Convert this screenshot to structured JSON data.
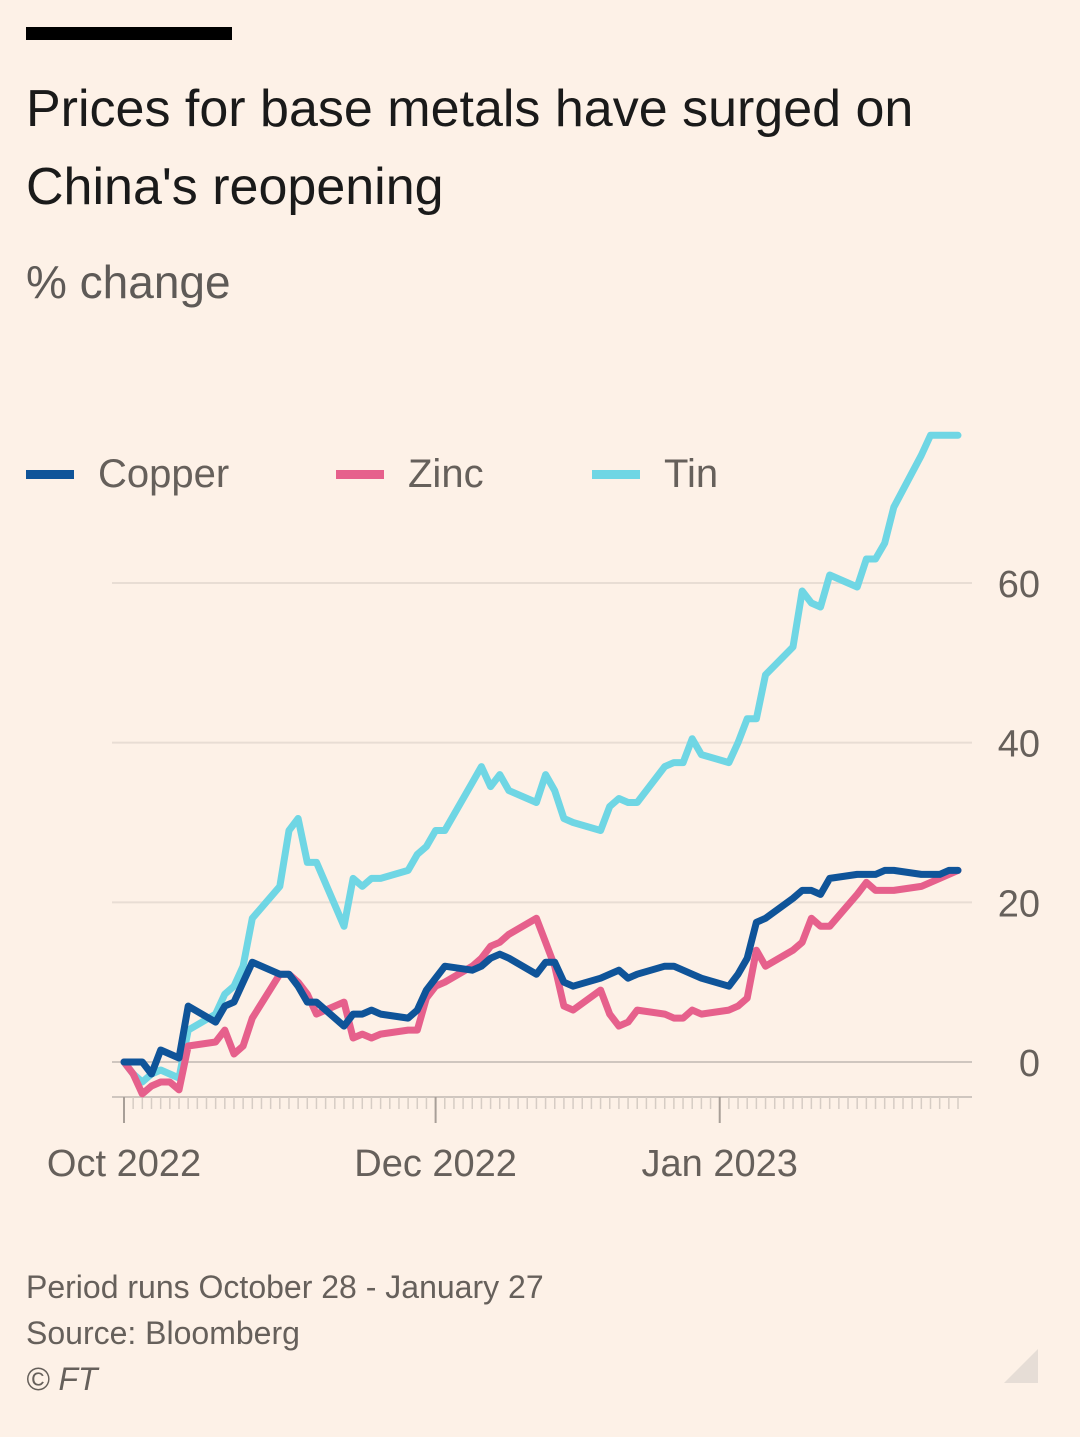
{
  "header": {
    "title": "Prices for base metals have surged on China's reopening",
    "subtitle": "% change"
  },
  "legend": [
    {
      "label": "Copper",
      "color": "#0f5499"
    },
    {
      "label": "Zinc",
      "color": "#e6608c"
    },
    {
      "label": "Tin",
      "color": "#6fd6e4"
    }
  ],
  "footer": {
    "note": "Period runs October 28 - January 27",
    "source": "Source: Bloomberg",
    "credit": "© FT"
  },
  "chart_data": {
    "type": "line",
    "ylabel": "% change",
    "ylim": [
      -4,
      79
    ],
    "y_ticks": [
      0,
      20,
      40,
      60
    ],
    "x_range": [
      "2022-10-28",
      "2023-01-27"
    ],
    "x_tick_labels": [
      {
        "label": "Oct 2022",
        "date": "2022-10-28"
      },
      {
        "label": "Dec 2022",
        "date": "2022-12-01"
      },
      {
        "label": "Jan 2023",
        "date": "2023-01-01"
      }
    ],
    "grid": true,
    "legend_position": "top-left",
    "series": [
      {
        "name": "Copper",
        "color": "#0f5499",
        "points": [
          [
            "2022-10-28",
            0
          ],
          [
            "2022-10-29",
            0
          ],
          [
            "2022-10-30",
            0
          ],
          [
            "2022-10-31",
            -1.5
          ],
          [
            "2022-11-01",
            1.5
          ],
          [
            "2022-11-02",
            1
          ],
          [
            "2022-11-03",
            0.5
          ],
          [
            "2022-11-04",
            7
          ],
          [
            "2022-11-07",
            5
          ],
          [
            "2022-11-08",
            7
          ],
          [
            "2022-11-09",
            7.5
          ],
          [
            "2022-11-10",
            10
          ],
          [
            "2022-11-11",
            12.5
          ],
          [
            "2022-11-14",
            11
          ],
          [
            "2022-11-15",
            11
          ],
          [
            "2022-11-16",
            9.5
          ],
          [
            "2022-11-17",
            7.5
          ],
          [
            "2022-11-18",
            7.5
          ],
          [
            "2022-11-21",
            4.5
          ],
          [
            "2022-11-22",
            6
          ],
          [
            "2022-11-23",
            6
          ],
          [
            "2022-11-24",
            6.5
          ],
          [
            "2022-11-25",
            6
          ],
          [
            "2022-11-28",
            5.5
          ],
          [
            "2022-11-29",
            6.5
          ],
          [
            "2022-11-30",
            9
          ],
          [
            "2022-12-01",
            10.5
          ],
          [
            "2022-12-02",
            12
          ],
          [
            "2022-12-05",
            11.5
          ],
          [
            "2022-12-06",
            12
          ],
          [
            "2022-12-07",
            13
          ],
          [
            "2022-12-08",
            13.5
          ],
          [
            "2022-12-09",
            13
          ],
          [
            "2022-12-12",
            11
          ],
          [
            "2022-12-13",
            12.5
          ],
          [
            "2022-12-14",
            12.5
          ],
          [
            "2022-12-15",
            10
          ],
          [
            "2022-12-16",
            9.5
          ],
          [
            "2022-12-19",
            10.5
          ],
          [
            "2022-12-20",
            11
          ],
          [
            "2022-12-21",
            11.5
          ],
          [
            "2022-12-22",
            10.5
          ],
          [
            "2022-12-23",
            11
          ],
          [
            "2022-12-26",
            12
          ],
          [
            "2022-12-27",
            12
          ],
          [
            "2022-12-28",
            11.5
          ],
          [
            "2022-12-29",
            11
          ],
          [
            "2022-12-30",
            10.5
          ],
          [
            "2023-01-02",
            9.5
          ],
          [
            "2023-01-03",
            11
          ],
          [
            "2023-01-04",
            13
          ],
          [
            "2023-01-05",
            17.5
          ],
          [
            "2023-01-06",
            18
          ],
          [
            "2023-01-09",
            20.5
          ],
          [
            "2023-01-10",
            21.5
          ],
          [
            "2023-01-11",
            21.5
          ],
          [
            "2023-01-12",
            21
          ],
          [
            "2023-01-13",
            23
          ],
          [
            "2023-01-16",
            23.5
          ],
          [
            "2023-01-17",
            23.5
          ],
          [
            "2023-01-18",
            23.5
          ],
          [
            "2023-01-19",
            24
          ],
          [
            "2023-01-20",
            24
          ],
          [
            "2023-01-23",
            23.5
          ],
          [
            "2023-01-24",
            23.5
          ],
          [
            "2023-01-25",
            23.5
          ],
          [
            "2023-01-26",
            24
          ],
          [
            "2023-01-27",
            24
          ]
        ]
      },
      {
        "name": "Zinc",
        "color": "#e6608c",
        "points": [
          [
            "2022-10-28",
            0
          ],
          [
            "2022-10-29",
            -1.5
          ],
          [
            "2022-10-30",
            -4
          ],
          [
            "2022-10-31",
            -3
          ],
          [
            "2022-11-01",
            -2.5
          ],
          [
            "2022-11-02",
            -2.5
          ],
          [
            "2022-11-03",
            -3.5
          ],
          [
            "2022-11-04",
            2
          ],
          [
            "2022-11-07",
            2.5
          ],
          [
            "2022-11-08",
            4
          ],
          [
            "2022-11-09",
            1
          ],
          [
            "2022-11-10",
            2
          ],
          [
            "2022-11-11",
            5.5
          ],
          [
            "2022-11-14",
            11
          ],
          [
            "2022-11-15",
            11
          ],
          [
            "2022-11-16",
            10
          ],
          [
            "2022-11-17",
            8.5
          ],
          [
            "2022-11-18",
            6
          ],
          [
            "2022-11-21",
            7.5
          ],
          [
            "2022-11-22",
            3
          ],
          [
            "2022-11-23",
            3.5
          ],
          [
            "2022-11-24",
            3
          ],
          [
            "2022-11-25",
            3.5
          ],
          [
            "2022-11-28",
            4
          ],
          [
            "2022-11-29",
            4
          ],
          [
            "2022-11-30",
            8
          ],
          [
            "2022-12-01",
            9.5
          ],
          [
            "2022-12-02",
            10
          ],
          [
            "2022-12-05",
            12
          ],
          [
            "2022-12-06",
            13
          ],
          [
            "2022-12-07",
            14.5
          ],
          [
            "2022-12-08",
            15
          ],
          [
            "2022-12-09",
            16
          ],
          [
            "2022-12-12",
            18
          ],
          [
            "2022-12-13",
            15
          ],
          [
            "2022-12-14",
            12
          ],
          [
            "2022-12-15",
            7
          ],
          [
            "2022-12-16",
            6.5
          ],
          [
            "2022-12-19",
            9
          ],
          [
            "2022-12-20",
            6
          ],
          [
            "2022-12-21",
            4.5
          ],
          [
            "2022-12-22",
            5
          ],
          [
            "2022-12-23",
            6.5
          ],
          [
            "2022-12-26",
            6
          ],
          [
            "2022-12-27",
            5.5
          ],
          [
            "2022-12-28",
            5.5
          ],
          [
            "2022-12-29",
            6.5
          ],
          [
            "2022-12-30",
            6
          ],
          [
            "2023-01-02",
            6.5
          ],
          [
            "2023-01-03",
            7
          ],
          [
            "2023-01-04",
            8
          ],
          [
            "2023-01-05",
            14
          ],
          [
            "2023-01-06",
            12
          ],
          [
            "2023-01-09",
            14
          ],
          [
            "2023-01-10",
            15
          ],
          [
            "2023-01-11",
            18
          ],
          [
            "2023-01-12",
            17
          ],
          [
            "2023-01-13",
            17
          ],
          [
            "2023-01-16",
            21
          ],
          [
            "2023-01-17",
            22.5
          ],
          [
            "2023-01-18",
            21.5
          ],
          [
            "2023-01-19",
            21.5
          ],
          [
            "2023-01-20",
            21.5
          ],
          [
            "2023-01-23",
            22
          ],
          [
            "2023-01-24",
            22.5
          ],
          [
            "2023-01-25",
            23
          ],
          [
            "2023-01-26",
            23.5
          ],
          [
            "2023-01-27",
            24
          ]
        ]
      },
      {
        "name": "Tin",
        "color": "#6fd6e4",
        "points": [
          [
            "2022-10-28",
            0
          ],
          [
            "2022-10-29",
            -1.5
          ],
          [
            "2022-10-30",
            -2.5
          ],
          [
            "2022-10-31",
            -1.5
          ],
          [
            "2022-11-01",
            -1
          ],
          [
            "2022-11-02",
            -1.5
          ],
          [
            "2022-11-03",
            -2
          ],
          [
            "2022-11-04",
            4
          ],
          [
            "2022-11-07",
            6
          ],
          [
            "2022-11-08",
            8.5
          ],
          [
            "2022-11-09",
            9.5
          ],
          [
            "2022-11-10",
            12
          ],
          [
            "2022-11-11",
            18
          ],
          [
            "2022-11-14",
            22
          ],
          [
            "2022-11-15",
            29
          ],
          [
            "2022-11-16",
            30.5
          ],
          [
            "2022-11-17",
            25
          ],
          [
            "2022-11-18",
            25
          ],
          [
            "2022-11-21",
            17
          ],
          [
            "2022-11-22",
            23
          ],
          [
            "2022-11-23",
            22
          ],
          [
            "2022-11-24",
            23
          ],
          [
            "2022-11-25",
            23
          ],
          [
            "2022-11-28",
            24
          ],
          [
            "2022-11-29",
            26
          ],
          [
            "2022-11-30",
            27
          ],
          [
            "2022-12-01",
            29
          ],
          [
            "2022-12-02",
            29
          ],
          [
            "2022-12-05",
            35
          ],
          [
            "2022-12-06",
            37
          ],
          [
            "2022-12-07",
            34.5
          ],
          [
            "2022-12-08",
            36
          ],
          [
            "2022-12-09",
            34
          ],
          [
            "2022-12-12",
            32.5
          ],
          [
            "2022-12-13",
            36
          ],
          [
            "2022-12-14",
            34
          ],
          [
            "2022-12-15",
            30.5
          ],
          [
            "2022-12-16",
            30
          ],
          [
            "2022-12-19",
            29
          ],
          [
            "2022-12-20",
            32
          ],
          [
            "2022-12-21",
            33
          ],
          [
            "2022-12-22",
            32.5
          ],
          [
            "2022-12-23",
            32.5
          ],
          [
            "2022-12-26",
            37
          ],
          [
            "2022-12-27",
            37.5
          ],
          [
            "2022-12-28",
            37.5
          ],
          [
            "2022-12-29",
            40.5
          ],
          [
            "2022-12-30",
            38.5
          ],
          [
            "2023-01-02",
            37.5
          ],
          [
            "2023-01-03",
            40
          ],
          [
            "2023-01-04",
            43
          ],
          [
            "2023-01-05",
            43
          ],
          [
            "2023-01-06",
            48.5
          ],
          [
            "2023-01-09",
            52
          ],
          [
            "2023-01-10",
            59
          ],
          [
            "2023-01-11",
            57.5
          ],
          [
            "2023-01-12",
            57
          ],
          [
            "2023-01-13",
            61
          ],
          [
            "2023-01-16",
            59.5
          ],
          [
            "2023-01-17",
            63
          ],
          [
            "2023-01-18",
            63
          ],
          [
            "2023-01-19",
            65
          ],
          [
            "2023-01-20",
            69.5
          ],
          [
            "2023-01-23",
            76
          ],
          [
            "2023-01-24",
            78.5
          ],
          [
            "2023-01-25",
            78.5
          ],
          [
            "2023-01-26",
            78.5
          ],
          [
            "2023-01-27",
            78.5
          ]
        ]
      }
    ]
  }
}
